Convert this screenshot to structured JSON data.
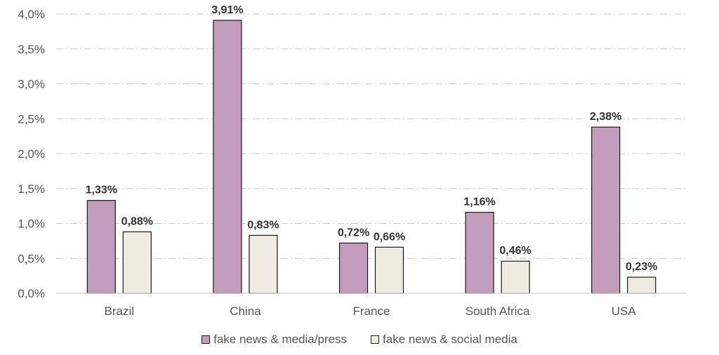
{
  "chart_data": {
    "type": "bar",
    "categories": [
      "Brazil",
      "China",
      "France",
      "South Africa",
      "USA"
    ],
    "series": [
      {
        "name": "fake news & media/press",
        "values": [
          1.33,
          3.91,
          0.72,
          1.16,
          2.38
        ],
        "labels": [
          "1,33%",
          "3,91%",
          "0,72%",
          "1,16%",
          "2,38%"
        ],
        "color": "#c39bbb"
      },
      {
        "name": "fake news & social media",
        "values": [
          0.88,
          0.83,
          0.66,
          0.46,
          0.23
        ],
        "labels": [
          "0,88%",
          "0,83%",
          "0,66%",
          "0,46%",
          "0,23%"
        ],
        "color": "#efebe1"
      }
    ],
    "ylim": [
      0,
      4.0
    ],
    "yticks": [
      0,
      0.5,
      1.0,
      1.5,
      2.0,
      2.5,
      3.0,
      3.5,
      4.0
    ],
    "ytick_labels": [
      "0,0%",
      "0,5%",
      "1,0%",
      "1,5%",
      "2,0%",
      "2,5%",
      "3,0%",
      "3,5%",
      "4,0%"
    ],
    "grid": true,
    "legend_position": "bottom",
    "title": "",
    "xlabel": "",
    "ylabel": ""
  }
}
